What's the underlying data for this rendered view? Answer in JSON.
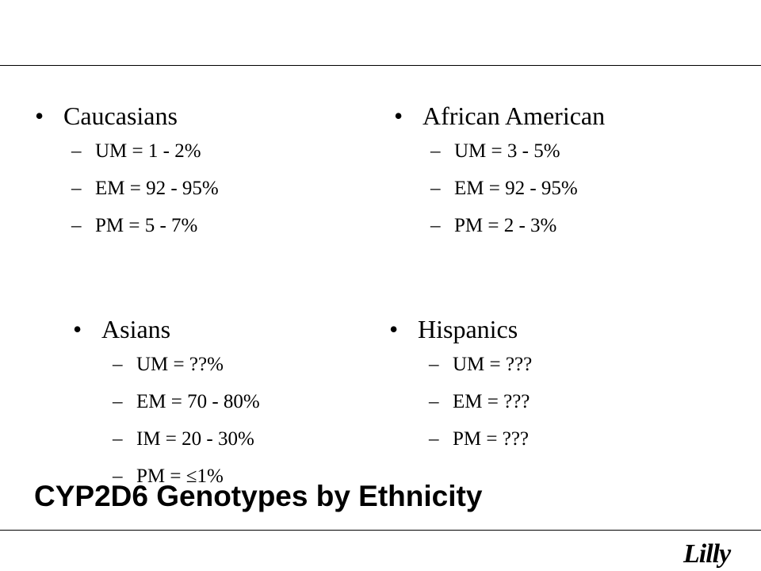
{
  "groups": [
    {
      "heading": "Caucasians",
      "items": [
        "UM = 1 - 2%",
        "EM = 92 - 95%",
        "PM = 5 - 7%"
      ]
    },
    {
      "heading": "African American",
      "items": [
        "UM = 3 - 5%",
        "EM = 92 - 95%",
        "PM = 2 - 3%"
      ]
    },
    {
      "heading": "Asians",
      "items": [
        "UM = ??%",
        "EM = 70 - 80%",
        "IM  = 20 - 30%",
        "PM = ≤1%"
      ]
    },
    {
      "heading": "Hispanics",
      "items": [
        "UM = ???",
        "EM = ???",
        "PM = ???"
      ]
    }
  ],
  "symbols": {
    "bullet": "•",
    "dash": "–"
  },
  "title": "CYP2D6 Genotypes by Ethnicity",
  "logo": "Lilly"
}
